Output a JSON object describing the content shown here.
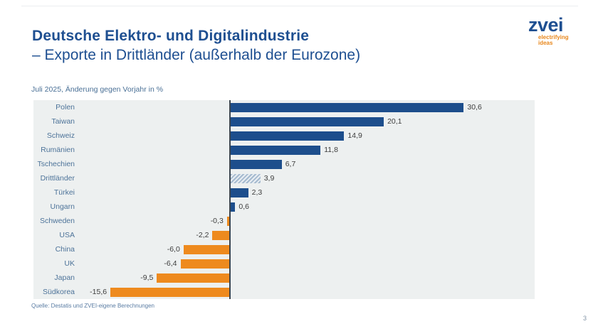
{
  "slide": {
    "title_line1": "Deutsche Elektro- und Digitalindustrie",
    "title_line2": "– Exporte in Drittländer (außerhalb der Eurozone)",
    "subtitle": "Juli 2025, Änderung gegen Vorjahr in %",
    "source": "Quelle: Destatis und ZVEI-eigene Berechnungen",
    "page_number": "3"
  },
  "logo": {
    "brand": "zvei",
    "tagline_line1": "electrifying",
    "tagline_line2": "ideas"
  },
  "colors": {
    "title_blue": "#1e4f91",
    "bar_positive_blue": "#1d4e8c",
    "bar_negative_orange": "#ee8a1e",
    "hatch_stripe": "#a5bacf",
    "hatch_background": "#e8edf2",
    "plot_background": "#edf0f0",
    "category_label_blue": "#4d7399",
    "value_label_gray": "#3d3d3d",
    "logo_tagline_orange": "#e8871c"
  },
  "chart_data": {
    "type": "bar",
    "orientation": "horizontal",
    "title": "Deutsche Elektro- und Digitalindustrie – Exporte in Drittländer (außerhalb der Eurozone)",
    "subtitle": "Juli 2025, Änderung gegen Vorjahr in %",
    "xlabel": "Änderung gegen Vorjahr in %",
    "ylabel": "",
    "categories": [
      "Polen",
      "Taiwan",
      "Schweiz",
      "Rumänien",
      "Tschechien",
      "Drittländer",
      "Türkei",
      "Ungarn",
      "Schweden",
      "USA",
      "China",
      "UK",
      "Japan",
      "Südkorea"
    ],
    "values": [
      30.6,
      20.1,
      14.9,
      11.8,
      6.7,
      3.9,
      2.3,
      0.6,
      -0.3,
      -2.2,
      -6.0,
      -6.4,
      -9.5,
      -15.6
    ],
    "value_labels": [
      "30,6",
      "20,1",
      "14,9",
      "11,8",
      "6,7",
      "3,9",
      "2,3",
      "0,6",
      "-0,3",
      "-2,2",
      "-6,0",
      "-6,4",
      "-9,5",
      "-15,6"
    ],
    "highlighted_category": "Drittländer",
    "highlight_style": "diagonal-hatch",
    "xlim": [
      -20,
      40
    ],
    "grid": false,
    "legend": false
  }
}
